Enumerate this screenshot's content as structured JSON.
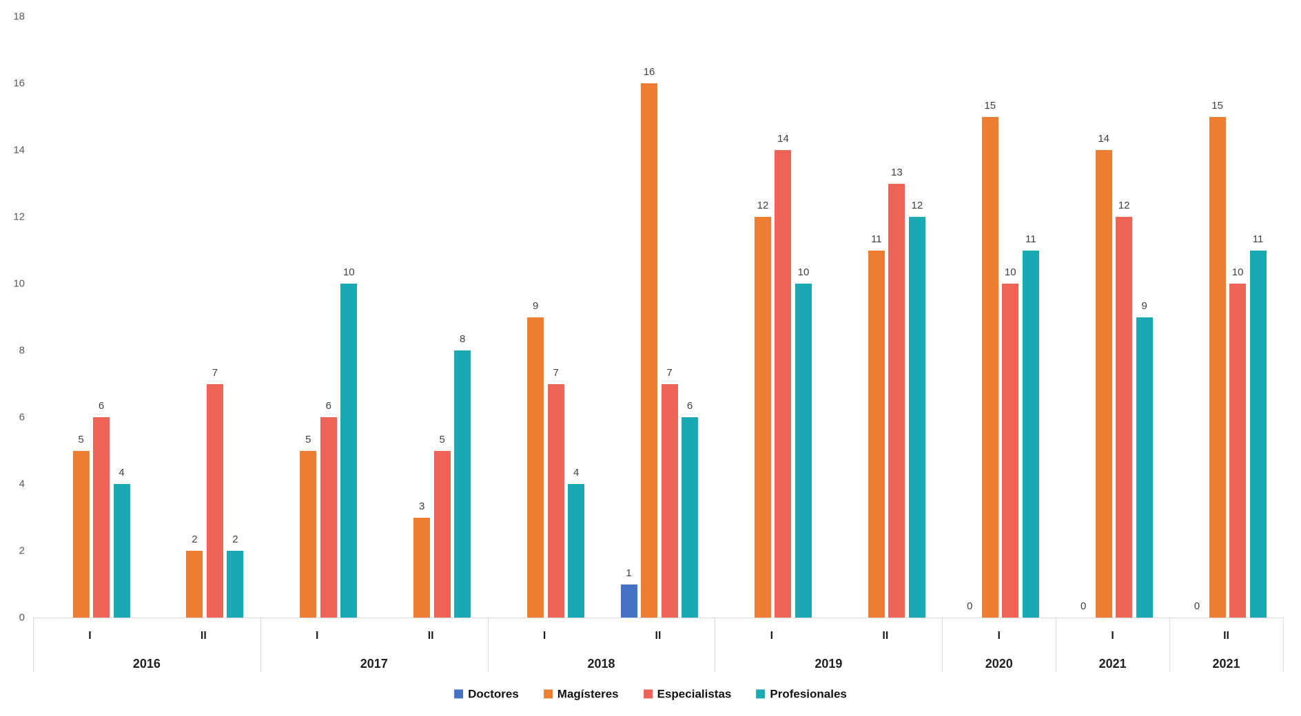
{
  "chart_data": {
    "type": "bar",
    "grid": false,
    "legend_position": "bottom",
    "value_labels": true,
    "ylim": [
      0,
      18
    ],
    "y_ticks": [
      0,
      2,
      4,
      6,
      8,
      10,
      12,
      14,
      16,
      18
    ],
    "categories": [
      {
        "year": "2016",
        "semester": "I"
      },
      {
        "year": "2016",
        "semester": "II"
      },
      {
        "year": "2017",
        "semester": "I"
      },
      {
        "year": "2017",
        "semester": "II"
      },
      {
        "year": "2018",
        "semester": "I"
      },
      {
        "year": "2018",
        "semester": "II"
      },
      {
        "year": "2019",
        "semester": "I"
      },
      {
        "year": "2019",
        "semester": "II"
      },
      {
        "year": "2020",
        "semester": "I"
      },
      {
        "year": "2021",
        "semester": "I"
      },
      {
        "year": "2021",
        "semester": "II"
      }
    ],
    "year_groups": [
      {
        "label": "2016",
        "span": 2
      },
      {
        "label": "2017",
        "span": 2
      },
      {
        "label": "2018",
        "span": 2
      },
      {
        "label": "2019",
        "span": 2
      },
      {
        "label": "2020",
        "span": 1
      },
      {
        "label": "2021",
        "span": 1
      },
      {
        "label": "2021",
        "span": 1
      }
    ],
    "series": [
      {
        "name": "Doctores",
        "color": "#4472C4",
        "values": [
          null,
          null,
          null,
          null,
          null,
          1,
          null,
          null,
          0,
          0,
          0
        ]
      },
      {
        "name": "Magísteres",
        "color": "#ED7D31",
        "values": [
          5,
          2,
          5,
          3,
          9,
          16,
          12,
          11,
          15,
          14,
          15
        ]
      },
      {
        "name": "Especialistas",
        "color": "#EF6357",
        "values": [
          6,
          7,
          6,
          5,
          7,
          7,
          14,
          13,
          10,
          12,
          10
        ]
      },
      {
        "name": "Profesionales",
        "color": "#1AA9B3",
        "values": [
          4,
          2,
          10,
          8,
          4,
          6,
          10,
          12,
          11,
          9,
          11
        ]
      }
    ]
  }
}
